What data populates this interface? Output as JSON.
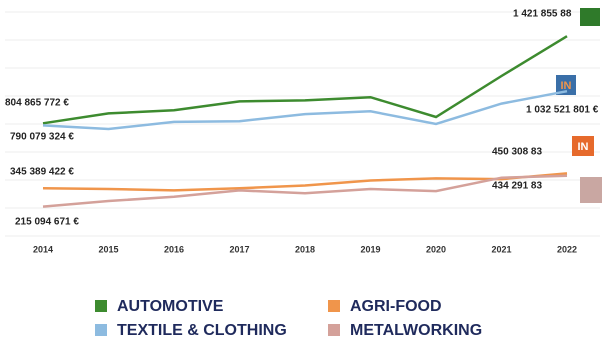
{
  "chart_data": {
    "type": "line",
    "categories": [
      "2014",
      "2015",
      "2016",
      "2017",
      "2018",
      "2019",
      "2020",
      "2021",
      "2022"
    ],
    "ylim": [
      0,
      1650
    ],
    "series": [
      {
        "name": "AUTOMOTIVE",
        "color": "#3d8b2f",
        "values": [
          804.865772,
          875,
          897,
          960,
          967,
          990,
          850,
          1140,
          1421.85588
        ],
        "value_labels": [
          "804 865 772 €",
          null,
          null,
          null,
          null,
          null,
          null,
          null,
          "1 421 855 88"
        ]
      },
      {
        "name": "TEXTILE & CLOTHING",
        "color": "#8dbbe0",
        "values": [
          790.079324,
          765,
          815,
          820,
          870,
          890,
          800,
          945,
          1032.521801
        ],
        "value_labels": [
          "790 079 324 €",
          null,
          null,
          null,
          null,
          null,
          null,
          null,
          "1 032 521 801 €"
        ]
      },
      {
        "name": "AGRI-FOOD",
        "color": "#f0954b",
        "values": [
          345.389422,
          340,
          330,
          345,
          365,
          400,
          415,
          410,
          450.30883
        ],
        "value_labels": [
          "345 389 422 €",
          null,
          null,
          null,
          null,
          null,
          null,
          null,
          "450 308 83"
        ]
      },
      {
        "name": "METALWORKING",
        "color": "#d4a19a",
        "values": [
          215.094671,
          255,
          285,
          330,
          310,
          340,
          325,
          420,
          434.29183
        ],
        "value_labels": [
          "215 094 671 €",
          null,
          null,
          null,
          null,
          null,
          null,
          null,
          "434 291 83"
        ]
      }
    ]
  }
}
